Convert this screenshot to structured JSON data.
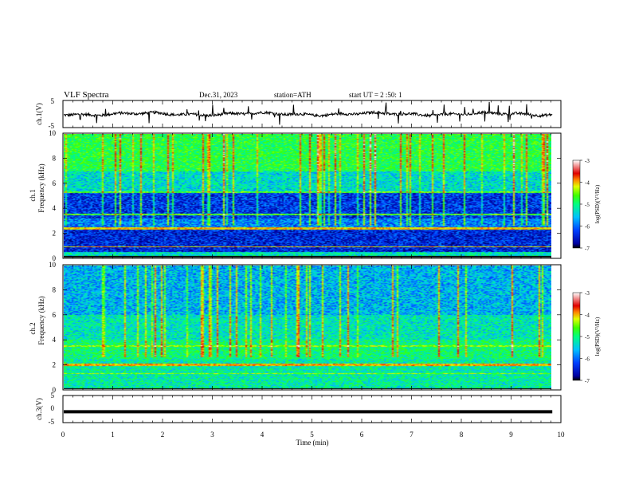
{
  "header": {
    "title": "VLF  Spectra",
    "date": "Dec.31, 2023",
    "station": "station=ATH",
    "start": "start  UT  =   2  :50: 1"
  },
  "colors": {
    "scale": [
      "#000000",
      "#0000c8",
      "#0064ff",
      "#00c8ff",
      "#00e8a0",
      "#40ff40",
      "#c0ff00",
      "#ffe000",
      "#ff6000",
      "#e00000",
      "#ffffff"
    ]
  },
  "chart_data": [
    {
      "type": "line",
      "panel": "ch1-waveform",
      "ylabel": "ch.1(V)",
      "ylim": [
        -5,
        5
      ],
      "yticks": [
        "5",
        "-5"
      ],
      "xlim": [
        0,
        10
      ],
      "duration_min": 9.83,
      "level": 0.0
    },
    {
      "type": "heatmap",
      "panel": "ch1-spectrogram",
      "ylabel_channel": "ch.1",
      "ylabel": "Frequency  (kHz)",
      "ylim": [
        0,
        10
      ],
      "yticks": [
        "0",
        "2",
        "4",
        "6",
        "8",
        "10"
      ],
      "xlim": [
        0,
        10
      ],
      "colorbar_label": "log(PSD)(V²/Hz)",
      "colorbar_ticks": [
        "-3",
        "-4",
        "-5",
        "-6",
        "-7"
      ],
      "colorbar_range": [
        -7,
        -3
      ]
    },
    {
      "type": "heatmap",
      "panel": "ch2-spectrogram",
      "ylabel_channel": "ch.2",
      "ylabel": "Frequency  (kHz)",
      "ylim": [
        0,
        10
      ],
      "yticks": [
        "0",
        "2",
        "4",
        "6",
        "8",
        "10"
      ],
      "xlim": [
        0,
        10
      ],
      "colorbar_label": "log(PSD)(V²/Hz)",
      "colorbar_ticks": [
        "-3",
        "-4",
        "-5",
        "-6",
        "-7"
      ],
      "colorbar_range": [
        -7,
        -3
      ]
    },
    {
      "type": "line",
      "panel": "ch3-waveform",
      "ylabel": "ch.3(V)",
      "ylim": [
        -5,
        5
      ],
      "yticks": [
        "5",
        "0",
        "-5"
      ],
      "xlim": [
        0,
        10
      ],
      "duration_min": 9.83,
      "level": -1.0
    }
  ],
  "xaxis": {
    "label": "Time  (min)",
    "ticks": [
      "0",
      "1",
      "2",
      "3",
      "4",
      "5",
      "6",
      "7",
      "8",
      "9",
      "10"
    ]
  }
}
